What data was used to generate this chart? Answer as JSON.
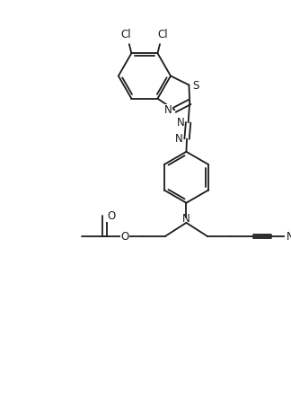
{
  "bg_color": "#ffffff",
  "line_color": "#1a1a1a",
  "line_width": 1.3,
  "font_size": 8.5,
  "figsize": [
    3.24,
    4.44
  ],
  "dpi": 100,
  "xlim": [
    0,
    10
  ],
  "ylim": [
    0,
    14
  ]
}
